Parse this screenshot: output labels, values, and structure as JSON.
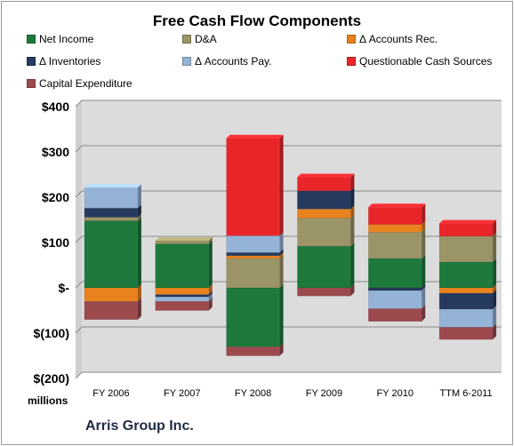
{
  "chart_data": {
    "type": "bar",
    "stacked": true,
    "title": "Free Cash Flow Components",
    "company": "Arris Group Inc.",
    "units": "millions",
    "categories": [
      "FY 2006",
      "FY 2007",
      "FY 2008",
      "FY 2009",
      "FY 2010",
      "TTM 6-2011"
    ],
    "ylim": [
      -200,
      400
    ],
    "yticks": [
      {
        "value": 400,
        "label": "$400"
      },
      {
        "value": 300,
        "label": "$300"
      },
      {
        "value": 200,
        "label": "$200"
      },
      {
        "value": 100,
        "label": "$100"
      },
      {
        "value": 0,
        "label": "$-"
      },
      {
        "value": -100,
        "label": "$(100)"
      },
      {
        "value": -200,
        "label": "$(200)"
      }
    ],
    "grid": true,
    "legend_position": "top",
    "series": [
      {
        "name": "Net Income",
        "color": "#1e7a3c",
        "values": [
          148,
          97,
          -130,
          92,
          65,
          57
        ]
      },
      {
        "name": "D&A",
        "color": "#9b9467",
        "values": [
          8,
          7,
          65,
          62,
          58,
          57
        ]
      },
      {
        "name": "Δ Accounts Rec.",
        "color": "#e8821e",
        "values": [
          -30,
          -15,
          6,
          20,
          17,
          -12
        ]
      },
      {
        "name": "Δ Inventories",
        "color": "#253a5e",
        "values": [
          20,
          -5,
          7,
          40,
          -6,
          -35
        ]
      },
      {
        "name": "Δ Accounts Pay.",
        "color": "#95b3d7",
        "values": [
          45,
          -10,
          37,
          0,
          -40,
          -40
        ]
      },
      {
        "name": "Questionable Cash Sources",
        "color": "#e8262a",
        "values": [
          0,
          0,
          215,
          30,
          38,
          28
        ]
      },
      {
        "name": "Capital Expenditure",
        "color": "#9c4a4e",
        "values": [
          -40,
          -20,
          -20,
          -18,
          -28,
          -27
        ]
      }
    ],
    "plot_background": "#dcdcdc",
    "wall_color": "#cfcfcf"
  }
}
